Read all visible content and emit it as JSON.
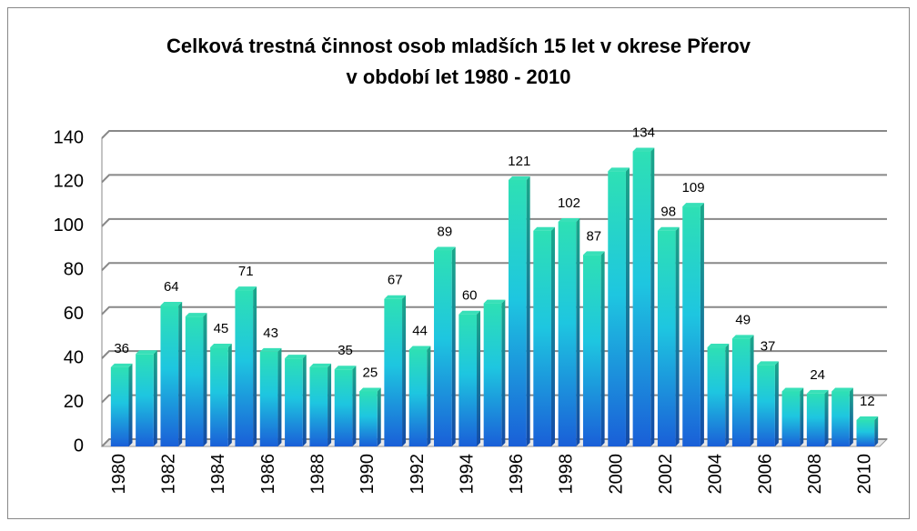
{
  "chart_data": {
    "type": "bar",
    "title": [
      "Celková trestná činnost osob mladších 15 let v okrese Přerov",
      "v období let 1980 - 2010"
    ],
    "categories": [
      "1980",
      null,
      "1982",
      null,
      "1984",
      null,
      "1986",
      null,
      "1988",
      null,
      "1990",
      null,
      "1992",
      null,
      "1994",
      null,
      "1996",
      null,
      "1998",
      null,
      "2000",
      null,
      "2002",
      null,
      "2004",
      null,
      "2006",
      null,
      "2008",
      null,
      "2010"
    ],
    "values": [
      36,
      42,
      64,
      59,
      45,
      71,
      43,
      40,
      36,
      35,
      25,
      67,
      44,
      89,
      60,
      65,
      121,
      98,
      102,
      87,
      125,
      134,
      98,
      109,
      45,
      49,
      37,
      25,
      24,
      25,
      12
    ],
    "show_labels": [
      true,
      false,
      true,
      false,
      true,
      true,
      true,
      false,
      false,
      true,
      true,
      true,
      true,
      true,
      true,
      false,
      true,
      false,
      true,
      true,
      false,
      true,
      true,
      true,
      false,
      true,
      true,
      false,
      true,
      false,
      true
    ],
    "ylim": [
      0,
      140
    ],
    "yticks": [
      0,
      20,
      40,
      60,
      80,
      100,
      120,
      140
    ],
    "grid": true
  }
}
